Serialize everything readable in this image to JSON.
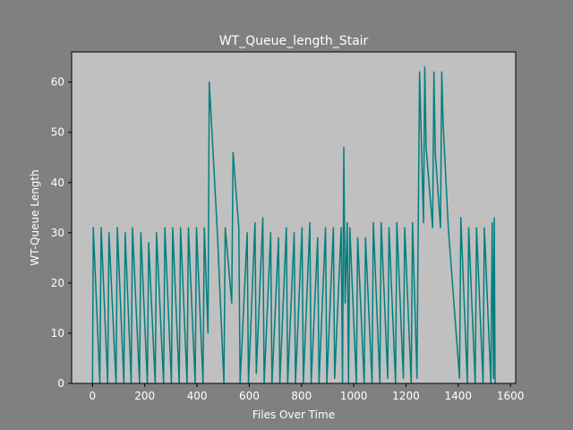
{
  "colors": {
    "figure_background": "#808080",
    "plot_background": "#c0c0c0",
    "series": "#007f7f",
    "text": "#ffffff",
    "axis": "#000000"
  },
  "chart_data": {
    "type": "line",
    "title": "WT_Queue_length_Stair",
    "xlabel": "Files Over Time",
    "ylabel": "WT-Queue Length",
    "xlim": [
      -80,
      1620
    ],
    "ylim": [
      0,
      66
    ],
    "xticks": [
      0,
      200,
      400,
      600,
      800,
      1000,
      1200,
      1400,
      1600
    ],
    "yticks": [
      0,
      10,
      20,
      30,
      40,
      50,
      60
    ],
    "grid": false,
    "series": [
      {
        "name": "",
        "x": [
          0,
          3,
          28,
          33,
          58,
          63,
          90,
          95,
          120,
          125,
          148,
          153,
          180,
          185,
          210,
          215,
          240,
          245,
          272,
          277,
          302,
          307,
          332,
          337,
          362,
          367,
          393,
          398,
          423,
          428,
          442,
          447,
          478,
          503,
          508,
          533,
          538,
          560,
          565,
          592,
          597,
          622,
          627,
          652,
          657,
          682,
          687,
          712,
          717,
          742,
          747,
          772,
          777,
          802,
          807,
          832,
          837,
          862,
          867,
          892,
          897,
          922,
          927,
          952,
          957,
          962,
          967,
          975,
          980,
          985,
          1010,
          1015,
          1040,
          1045,
          1070,
          1075,
          1100,
          1105,
          1130,
          1135,
          1160,
          1165,
          1190,
          1195,
          1220,
          1225,
          1242,
          1247,
          1252,
          1267,
          1272,
          1277,
          1302,
          1307,
          1312,
          1332,
          1337,
          1342,
          1362,
          1405,
          1410,
          1435,
          1440,
          1465,
          1470,
          1495,
          1500,
          1525,
          1530,
          1535,
          1538,
          1541
        ],
        "y": [
          0,
          31,
          0,
          31,
          0,
          30,
          0,
          31,
          0,
          30,
          0,
          31,
          0,
          30,
          0,
          28,
          0,
          30,
          0,
          31,
          0,
          31,
          0,
          31,
          0,
          31,
          0,
          31,
          0,
          31,
          10,
          60,
          30,
          0,
          31,
          16,
          46,
          31,
          0,
          30,
          0,
          32,
          2,
          33,
          0,
          30,
          0,
          29,
          0,
          31,
          0,
          30,
          0,
          31,
          0,
          32,
          0,
          29,
          0,
          31,
          0,
          31,
          1,
          31,
          0,
          47,
          16,
          32,
          0,
          31,
          0,
          29,
          0,
          29,
          0,
          32,
          0,
          32,
          1,
          31,
          0,
          32,
          1,
          31,
          0,
          32,
          1,
          32,
          62,
          32,
          63,
          47,
          31,
          62,
          46,
          31,
          62,
          52,
          31,
          1,
          33,
          0,
          31,
          0,
          31,
          0,
          31,
          0,
          32,
          1,
          33,
          0
        ]
      }
    ]
  }
}
